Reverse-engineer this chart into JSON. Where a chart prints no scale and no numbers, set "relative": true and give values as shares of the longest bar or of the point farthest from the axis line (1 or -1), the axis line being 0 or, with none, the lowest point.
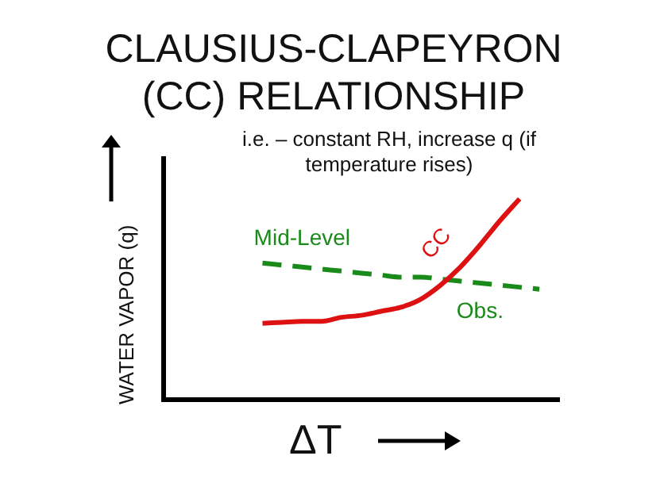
{
  "chart_data": {
    "type": "line",
    "title": "CLAUSIUS-CLAPEYRON (CC) RELATIONSHIP",
    "subtitle": "i.e. – constant RH, increase q (if temperature rises)",
    "xlabel": "ΔT",
    "ylabel": "WATER VAPOR (q)",
    "relative": true,
    "legend": false,
    "grid": false,
    "categories": [
      null,
      null,
      null,
      null,
      null,
      null,
      null,
      null,
      null,
      null,
      null,
      null,
      null,
      null,
      null,
      null,
      null,
      null,
      null,
      null,
      null
    ],
    "series": [
      {
        "name": "CC",
        "color": "#dd1111",
        "line_style": "solid",
        "values": [
          null,
          null,
          null,
          null,
          null,
          0.38,
          0.385,
          0.39,
          0.39,
          0.41,
          0.42,
          0.44,
          0.46,
          0.5,
          0.57,
          0.66,
          0.77,
          0.89,
          1,
          null,
          null
        ]
      },
      {
        "name": "Mid-Level",
        "color": "#1a8a1a",
        "line_style": "dashed",
        "values": [
          null,
          null,
          null,
          null,
          null,
          0.68,
          0.67,
          0.66,
          0.65,
          0.64,
          0.63,
          0.62,
          0.61,
          0.61,
          0.6,
          0.59,
          0.58,
          0.57,
          0.56,
          0.55,
          null
        ]
      }
    ],
    "annotations": [
      "Obs."
    ]
  }
}
